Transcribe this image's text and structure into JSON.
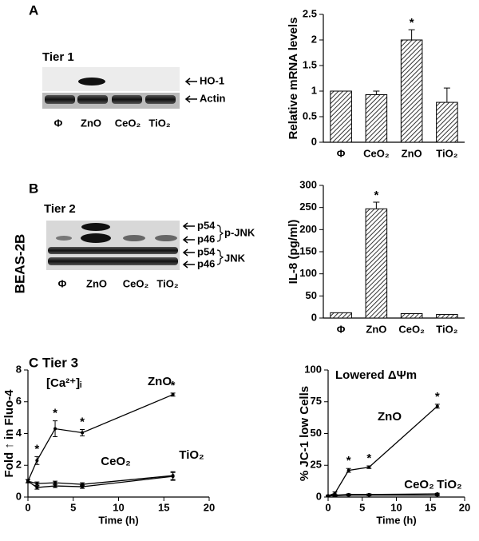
{
  "panel_a": {
    "label": "A",
    "tier": "Tier 1",
    "bands": [
      "HO-1",
      "Actin"
    ],
    "lanes": [
      "Φ",
      "ZnO",
      "CeO₂",
      "TiO₂"
    ]
  },
  "panel_b": {
    "label": "B",
    "tier": "Tier 2",
    "bands": [
      "p54",
      "p46",
      "p54",
      "p46"
    ],
    "groups": [
      "p-JNK",
      "JNK"
    ],
    "lanes": [
      "Φ",
      "ZnO",
      "CeO₂",
      "TiO₂"
    ]
  },
  "panel_c": {
    "label": "C Tier 3"
  },
  "cell_line": "BEAS-2B",
  "chart_data": [
    {
      "type": "bar",
      "y_label": "Relative mRNA levels",
      "categories": [
        "Φ",
        "CeO₂",
        "ZnO",
        "TiO₂"
      ],
      "values": [
        1,
        0.93,
        2.0,
        0.78
      ],
      "errors": [
        0,
        0.07,
        0.2,
        0.28
      ],
      "color": "#333333",
      "hatch": true,
      "ylim": [
        0,
        2.5
      ],
      "yticks": [
        0,
        0.5,
        1,
        1.5,
        2,
        2.5
      ],
      "annotations": [
        {
          "text": "*",
          "category": "ZnO"
        }
      ]
    },
    {
      "type": "bar",
      "y_label": "IL-8 (pg/ml)",
      "categories": [
        "Φ",
        "ZnO",
        "CeO₂",
        "TiO₂"
      ],
      "values": [
        12,
        247,
        10,
        8
      ],
      "errors": [
        0,
        15,
        0,
        0
      ],
      "color": "#333333",
      "hatch": true,
      "ylim": [
        0,
        300
      ],
      "yticks": [
        0,
        50,
        100,
        150,
        200,
        250,
        300
      ],
      "annotations": [
        {
          "text": "*",
          "category": "ZnO"
        }
      ]
    },
    {
      "type": "line",
      "x_label": "Time (h)",
      "y_label": "Fold ↑ in Fluo-4",
      "note": "[Ca²⁺]ᵢ",
      "x": [
        0,
        1,
        3,
        6,
        16
      ],
      "series": [
        {
          "name": "ZnO",
          "color": "#000000",
          "values": [
            1,
            2.3,
            4.3,
            4.05,
            6.45
          ],
          "errors": [
            0.1,
            0.25,
            0.5,
            0.2,
            0.1
          ]
        },
        {
          "name": "CeO₂",
          "color": "#000000",
          "values": [
            1,
            0.6,
            0.7,
            0.65,
            1.3
          ],
          "errors": [
            0.1,
            0.1,
            0.1,
            0.1,
            0.25
          ]
        },
        {
          "name": "TiO₂",
          "color": "#000000",
          "values": [
            1,
            0.85,
            0.9,
            0.8,
            1.35
          ],
          "errors": [
            0.1,
            0.1,
            0.1,
            0.1,
            0.25
          ]
        }
      ],
      "xlim": [
        0,
        20
      ],
      "xticks": [
        0,
        5,
        10,
        15,
        20
      ],
      "ylim": [
        0,
        8
      ],
      "yticks": [
        0,
        2,
        4,
        6,
        8
      ],
      "annotations": [
        {
          "text": "*",
          "series": "ZnO",
          "x": 1
        },
        {
          "text": "*",
          "series": "ZnO",
          "x": 3
        },
        {
          "text": "*",
          "series": "ZnO",
          "x": 6
        },
        {
          "text": "*",
          "series": "ZnO",
          "x": 16
        }
      ]
    },
    {
      "type": "line",
      "x_label": "Time (h)",
      "y_label": "% JC-1  low Cells",
      "note": "Lowered ΔΨm",
      "x": [
        0,
        1,
        3,
        6,
        16
      ],
      "series": [
        {
          "name": "ZnO",
          "color": "#000000",
          "values": [
            1,
            3,
            21,
            23.5,
            71.5
          ],
          "errors": [
            0.5,
            1,
            1.5,
            1,
            1.5
          ]
        },
        {
          "name": "CeO₂",
          "color": "#000000",
          "values": [
            1,
            1,
            1.5,
            1.5,
            1.5
          ],
          "errors": [
            0.5,
            0.5,
            0.5,
            0.5,
            0.5
          ]
        },
        {
          "name": "TiO₂",
          "color": "#000000",
          "values": [
            1,
            1.5,
            2,
            2,
            2.5
          ],
          "errors": [
            0.5,
            0.5,
            0.5,
            0.5,
            0.5
          ]
        }
      ],
      "xlim": [
        0,
        20
      ],
      "xticks": [
        0,
        5,
        10,
        15,
        20
      ],
      "ylim": [
        0,
        100
      ],
      "yticks": [
        0,
        25,
        50,
        75,
        100
      ],
      "annotations": [
        {
          "text": "*",
          "series": "ZnO",
          "x": 3
        },
        {
          "text": "*",
          "series": "ZnO",
          "x": 6
        },
        {
          "text": "*",
          "series": "ZnO",
          "x": 16
        }
      ]
    }
  ]
}
